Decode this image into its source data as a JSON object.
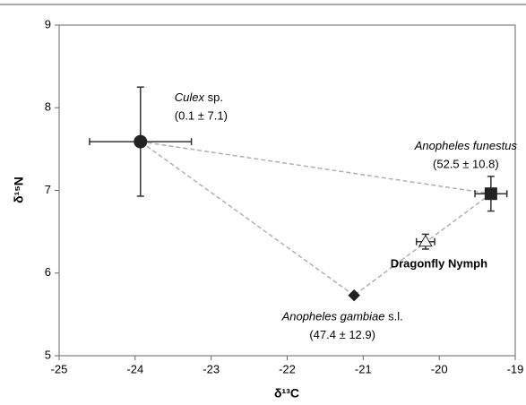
{
  "chart_data": {
    "type": "scatter",
    "xlabel": "δ¹³C",
    "ylabel": "δ¹⁵N",
    "xlim": [
      -25,
      -19
    ],
    "ylim": [
      5,
      9
    ],
    "xticks": [
      -25,
      -24,
      -23,
      -22,
      -21,
      -20,
      -19
    ],
    "yticks": [
      5,
      6,
      7,
      8,
      9
    ],
    "line_color": "#b0b0b0",
    "series": [
      {
        "label_italic": "Culex",
        "label_plain": " sp.",
        "note": "(0.1 ± 7.1)",
        "marker": "circle",
        "color": "#222222",
        "x": -23.93,
        "y": 7.59,
        "xerr": 0.67,
        "yerr": 0.66
      },
      {
        "label_italic": "Anopheles funestus",
        "note": "(52.5 ± 10.8)",
        "marker": "square",
        "color": "#222222",
        "x": -19.32,
        "y": 6.96,
        "xerr": 0.21,
        "yerr": 0.21
      },
      {
        "label_bold": "Dragonfly Nymph",
        "marker": "triangle",
        "color": "#ffffff",
        "x": -20.18,
        "y": 6.38,
        "xerr": 0.12,
        "yerr": 0.09
      },
      {
        "label_italic": "Anopheles gambiae",
        "label_plain": " s.l.",
        "note": "(47.4 ± 12.9)",
        "marker": "diamond",
        "color": "#222222",
        "x": -21.12,
        "y": 5.73
      }
    ],
    "mixing_polygon": [
      0,
      1,
      3
    ]
  }
}
